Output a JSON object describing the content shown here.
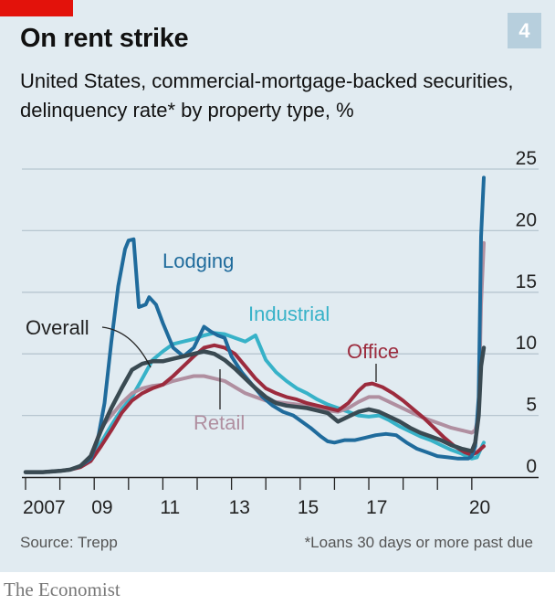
{
  "badge": "4",
  "title": "On rent strike",
  "subtitle": "United States, commercial-mortgage-backed securities, delinquency rate* by property type, %",
  "source": "Source: Trepp",
  "footnote": "*Loans 30 days or more past due",
  "brand": "The Economist",
  "colors": {
    "background": "#e1ebf1",
    "accent_red": "#e3120b",
    "badge": "#b7cfdd",
    "gridline": "#b7c6d0"
  },
  "chart_data": {
    "type": "line",
    "title": "On rent strike",
    "ylim": [
      0,
      25
    ],
    "yticks": [
      0,
      5,
      10,
      15,
      20,
      25
    ],
    "y_tick_labels": [
      "0",
      "5",
      "10",
      "15",
      "20",
      "25"
    ],
    "xlim": [
      2007.0,
      2020.35
    ],
    "x_tick_positions": [
      2007,
      2008,
      2009,
      2010,
      2011,
      2012,
      2013,
      2014,
      2015,
      2016,
      2017,
      2018,
      2019,
      2020
    ],
    "x_tick_labels": [
      {
        "x": 2007,
        "label": "2007"
      },
      {
        "x": 2009,
        "label": "09"
      },
      {
        "x": 2011,
        "label": "11"
      },
      {
        "x": 2013,
        "label": "13"
      },
      {
        "x": 2015,
        "label": "15"
      },
      {
        "x": 2017,
        "label": "17"
      },
      {
        "x": 2020,
        "label": "20"
      }
    ],
    "grid": true,
    "axis_side": "right",
    "series": [
      {
        "name": "Lodging",
        "color": "#1f6b9c",
        "x": [
          2007.0,
          2007.5,
          2008.0,
          2008.3,
          2008.6,
          2008.9,
          2009.1,
          2009.3,
          2009.5,
          2009.7,
          2009.9,
          2010.0,
          2010.15,
          2010.3,
          2010.5,
          2010.6,
          2010.8,
          2011.0,
          2011.3,
          2011.6,
          2011.9,
          2012.2,
          2012.4,
          2012.6,
          2012.8,
          2013.0,
          2013.3,
          2013.6,
          2013.9,
          2014.2,
          2014.5,
          2014.8,
          2015.0,
          2015.3,
          2015.6,
          2015.8,
          2016.0,
          2016.3,
          2016.6,
          2016.9,
          2017.2,
          2017.5,
          2017.8,
          2018.1,
          2018.4,
          2018.7,
          2019.0,
          2019.3,
          2019.6,
          2019.9,
          2020.0,
          2020.1,
          2020.2,
          2020.27,
          2020.35
        ],
        "y": [
          0.4,
          0.4,
          0.5,
          0.6,
          0.9,
          1.5,
          3.0,
          6.0,
          11.0,
          15.5,
          18.5,
          19.2,
          19.3,
          13.8,
          14.0,
          14.6,
          14.0,
          12.5,
          10.5,
          9.8,
          10.5,
          12.2,
          11.8,
          11.5,
          11.3,
          9.8,
          8.5,
          7.5,
          6.5,
          5.8,
          5.3,
          5.0,
          4.6,
          4.0,
          3.3,
          2.9,
          2.8,
          3.0,
          3.0,
          3.2,
          3.4,
          3.5,
          3.4,
          2.8,
          2.3,
          2.0,
          1.7,
          1.6,
          1.5,
          1.5,
          1.7,
          2.5,
          6.5,
          19.5,
          24.3
        ]
      },
      {
        "name": "Industrial",
        "color": "#37b2c8",
        "x": [
          2007.0,
          2007.5,
          2008.0,
          2008.3,
          2008.6,
          2008.9,
          2009.2,
          2009.5,
          2009.8,
          2010.1,
          2010.4,
          2010.7,
          2011.0,
          2011.3,
          2011.6,
          2011.9,
          2012.2,
          2012.5,
          2012.8,
          2013.1,
          2013.4,
          2013.7,
          2014.0,
          2014.3,
          2014.6,
          2014.9,
          2015.2,
          2015.5,
          2015.8,
          2016.1,
          2016.4,
          2016.7,
          2017.0,
          2017.3,
          2017.6,
          2017.9,
          2018.2,
          2018.5,
          2018.8,
          2019.1,
          2019.4,
          2019.7,
          2020.0,
          2020.15,
          2020.25,
          2020.35
        ],
        "y": [
          0.4,
          0.4,
          0.5,
          0.6,
          0.9,
          1.5,
          2.8,
          4.2,
          5.5,
          6.5,
          8.0,
          9.5,
          10.2,
          10.8,
          11.0,
          11.2,
          11.5,
          11.7,
          11.6,
          11.3,
          11.0,
          11.5,
          9.5,
          8.5,
          7.8,
          7.2,
          6.8,
          6.3,
          5.9,
          5.6,
          5.3,
          5.0,
          4.9,
          5.0,
          4.6,
          4.1,
          3.7,
          3.3,
          3.0,
          2.6,
          2.2,
          1.9,
          1.5,
          1.6,
          2.2,
          2.8
        ]
      },
      {
        "name": "Retail",
        "color": "#b08fa0",
        "x": [
          2007.0,
          2007.5,
          2008.0,
          2008.3,
          2008.6,
          2008.9,
          2009.2,
          2009.5,
          2009.8,
          2010.1,
          2010.4,
          2010.7,
          2011.0,
          2011.3,
          2011.6,
          2011.9,
          2012.2,
          2012.5,
          2012.8,
          2013.1,
          2013.4,
          2013.7,
          2014.0,
          2014.3,
          2014.6,
          2014.9,
          2015.2,
          2015.5,
          2015.8,
          2016.1,
          2016.4,
          2016.7,
          2017.0,
          2017.3,
          2017.6,
          2017.9,
          2018.2,
          2018.5,
          2018.8,
          2019.1,
          2019.4,
          2019.7,
          2020.0,
          2020.1,
          2020.2,
          2020.27,
          2020.35
        ],
        "y": [
          0.4,
          0.4,
          0.5,
          0.6,
          0.9,
          1.6,
          4.0,
          5.0,
          6.0,
          6.8,
          7.2,
          7.4,
          7.5,
          7.8,
          8.0,
          8.2,
          8.2,
          8.0,
          7.8,
          7.3,
          6.8,
          6.5,
          6.2,
          6.1,
          6.0,
          5.9,
          5.8,
          5.6,
          5.4,
          5.3,
          5.6,
          6.1,
          6.5,
          6.5,
          6.1,
          5.7,
          5.3,
          4.9,
          4.6,
          4.3,
          4.0,
          3.8,
          3.6,
          3.8,
          5.0,
          14.0,
          19.0
        ]
      },
      {
        "name": "Office",
        "color": "#9c2b3d",
        "x": [
          2007.0,
          2007.5,
          2008.0,
          2008.3,
          2008.6,
          2008.9,
          2009.2,
          2009.5,
          2009.8,
          2010.1,
          2010.4,
          2010.7,
          2011.0,
          2011.3,
          2011.6,
          2011.9,
          2012.2,
          2012.5,
          2012.8,
          2013.1,
          2013.4,
          2013.7,
          2014.0,
          2014.3,
          2014.6,
          2014.9,
          2015.2,
          2015.5,
          2015.8,
          2016.1,
          2016.4,
          2016.7,
          2016.9,
          2017.1,
          2017.4,
          2017.7,
          2018.0,
          2018.3,
          2018.6,
          2018.9,
          2019.2,
          2019.5,
          2019.8,
          2020.0,
          2020.15,
          2020.35
        ],
        "y": [
          0.4,
          0.4,
          0.5,
          0.6,
          0.8,
          1.3,
          2.5,
          3.8,
          5.2,
          6.2,
          6.8,
          7.2,
          7.5,
          8.2,
          9.0,
          9.8,
          10.5,
          10.7,
          10.5,
          10.0,
          9.0,
          8.0,
          7.2,
          6.8,
          6.5,
          6.3,
          6.0,
          5.8,
          5.6,
          5.4,
          6.0,
          7.0,
          7.5,
          7.6,
          7.3,
          6.8,
          6.2,
          5.5,
          4.8,
          4.0,
          3.2,
          2.5,
          2.0,
          1.8,
          2.0,
          2.5
        ]
      },
      {
        "name": "Overall",
        "color": "#3a4a52",
        "x": [
          2007.0,
          2007.5,
          2008.0,
          2008.3,
          2008.6,
          2008.9,
          2009.2,
          2009.5,
          2009.8,
          2010.1,
          2010.4,
          2010.7,
          2011.0,
          2011.3,
          2011.6,
          2011.9,
          2012.2,
          2012.5,
          2012.8,
          2013.1,
          2013.4,
          2013.7,
          2014.0,
          2014.3,
          2014.6,
          2014.9,
          2015.2,
          2015.5,
          2015.8,
          2016.1,
          2016.4,
          2016.7,
          2017.0,
          2017.3,
          2017.6,
          2017.9,
          2018.2,
          2018.5,
          2018.8,
          2019.1,
          2019.4,
          2019.7,
          2020.0,
          2020.1,
          2020.2,
          2020.27,
          2020.35
        ],
        "y": [
          0.4,
          0.4,
          0.5,
          0.6,
          0.9,
          1.7,
          3.8,
          5.6,
          7.2,
          8.7,
          9.2,
          9.4,
          9.4,
          9.6,
          9.8,
          10.0,
          10.2,
          10.0,
          9.5,
          8.8,
          8.0,
          7.2,
          6.5,
          6.0,
          5.8,
          5.7,
          5.6,
          5.4,
          5.2,
          4.5,
          4.9,
          5.3,
          5.5,
          5.3,
          4.9,
          4.5,
          4.0,
          3.6,
          3.3,
          3.0,
          2.6,
          2.3,
          2.1,
          2.8,
          5.0,
          9.0,
          10.5
        ]
      }
    ],
    "annotations": [
      {
        "text": "Lodging",
        "series": "Lodging"
      },
      {
        "text": "Industrial",
        "series": "Industrial"
      },
      {
        "text": "Office",
        "series": "Office"
      },
      {
        "text": "Retail",
        "series": "Retail"
      },
      {
        "text": "Overall",
        "series": "Overall"
      }
    ]
  }
}
